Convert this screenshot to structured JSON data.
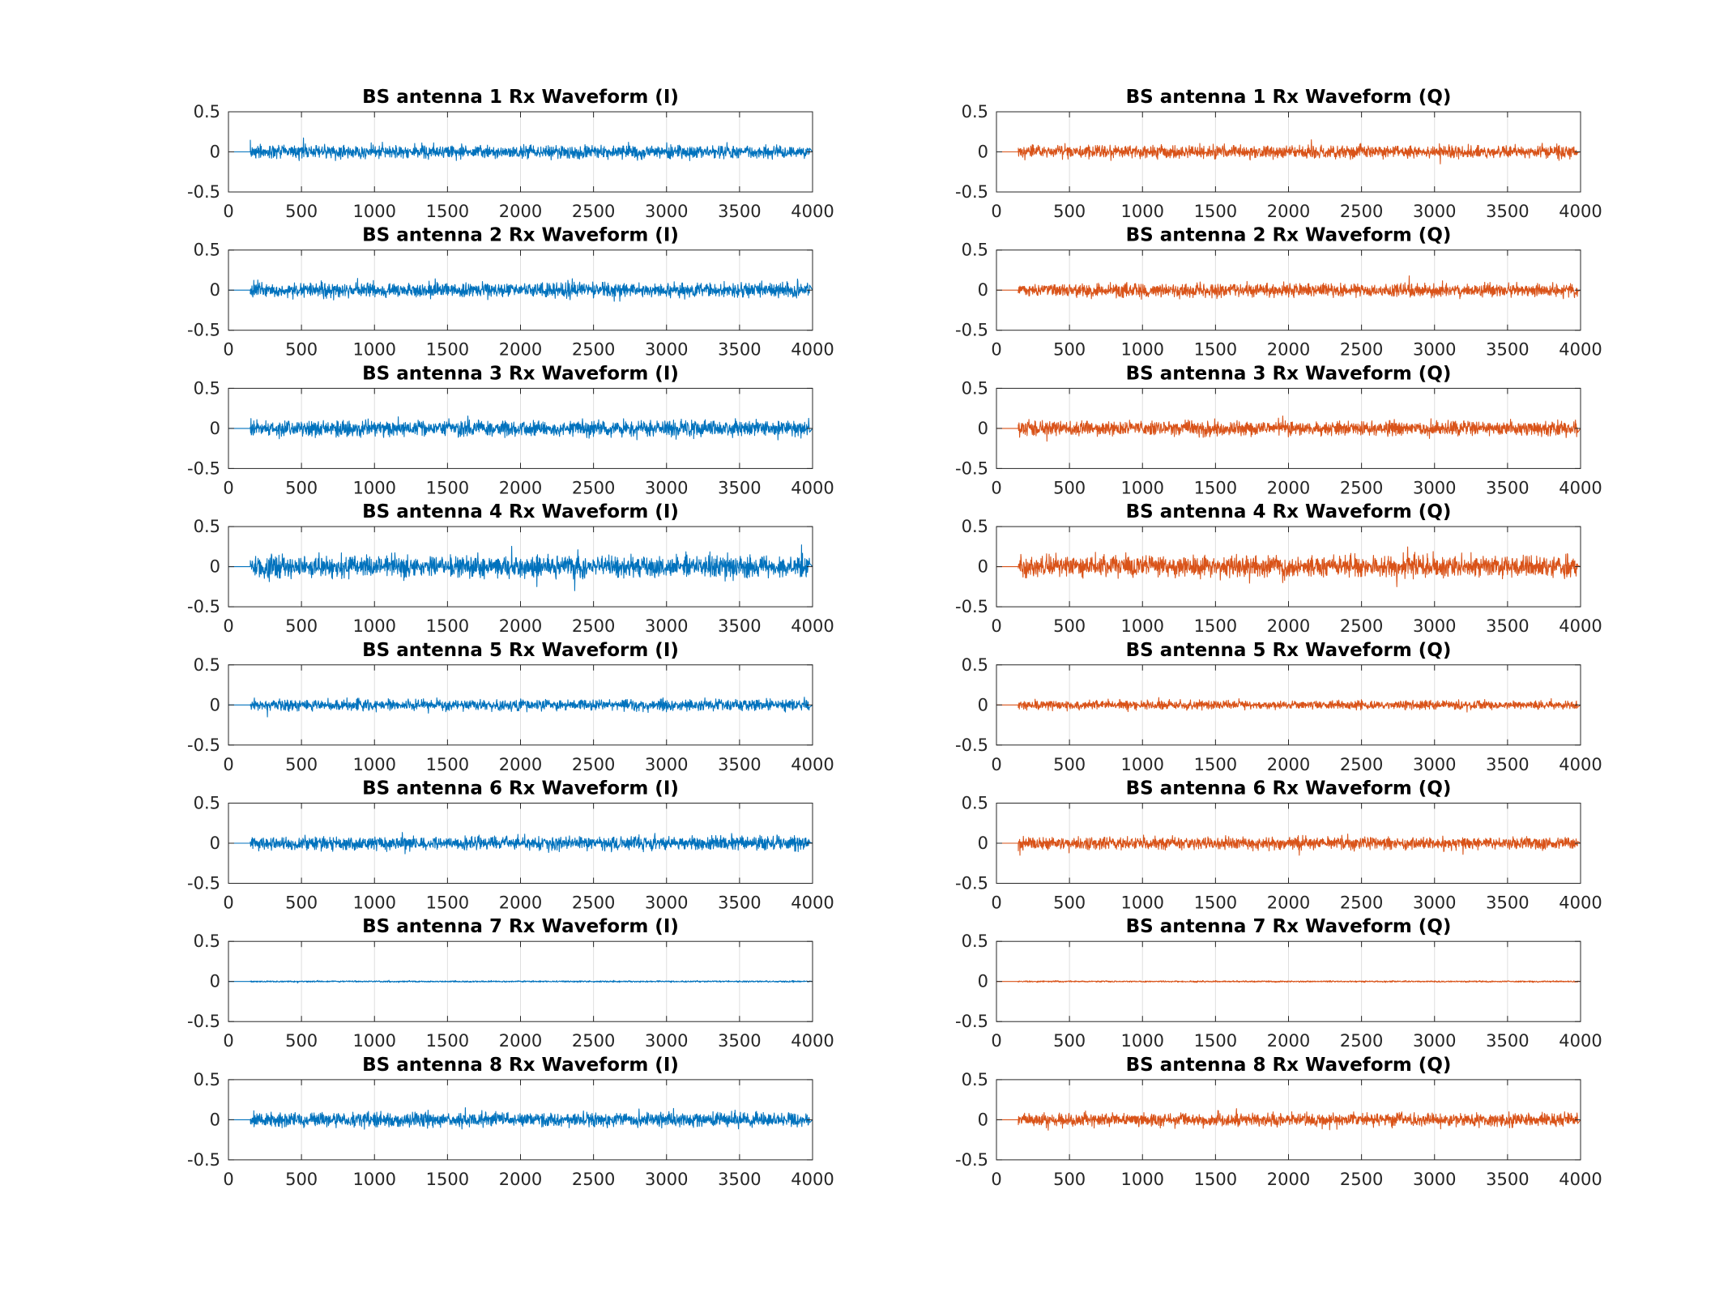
{
  "chart_data": [
    {
      "type": "line",
      "title": "BS antenna 1 Rx Waveform (I)",
      "panel": "I",
      "antenna": 1,
      "color": "#0072BD",
      "xlim": [
        0,
        4000
      ],
      "ylim": [
        -0.5,
        0.5
      ],
      "xticks": [
        "0",
        "500",
        "1000",
        "1500",
        "2000",
        "2500",
        "3000",
        "3500",
        "4000"
      ],
      "yticks": [
        "0.5",
        "0",
        "-0.5"
      ],
      "grid_x": true,
      "grid_y": false,
      "signal_start": 150,
      "signal_end": 3980,
      "amplitude_envelope": 0.18
    },
    {
      "type": "line",
      "title": "BS antenna 1 Rx Waveform (Q)",
      "panel": "Q",
      "antenna": 1,
      "color": "#D95319",
      "xlim": [
        0,
        4000
      ],
      "ylim": [
        -0.5,
        0.5
      ],
      "xticks": [
        "0",
        "500",
        "1000",
        "1500",
        "2000",
        "2500",
        "3000",
        "3500",
        "4000"
      ],
      "yticks": [
        "0.5",
        "0",
        "-0.5"
      ],
      "grid_x": true,
      "grid_y": false,
      "signal_start": 150,
      "signal_end": 3980,
      "amplitude_envelope": 0.18
    },
    {
      "type": "line",
      "title": "BS antenna 2 Rx Waveform (I)",
      "panel": "I",
      "antenna": 2,
      "color": "#0072BD",
      "xlim": [
        0,
        4000
      ],
      "ylim": [
        -0.5,
        0.5
      ],
      "xticks": [
        "0",
        "500",
        "1000",
        "1500",
        "2000",
        "2500",
        "3000",
        "3500",
        "4000"
      ],
      "yticks": [
        "0.5",
        "0",
        "-0.5"
      ],
      "grid_x": true,
      "grid_y": false,
      "signal_start": 150,
      "signal_end": 3980,
      "amplitude_envelope": 0.2
    },
    {
      "type": "line",
      "title": "BS antenna 2 Rx Waveform (Q)",
      "panel": "Q",
      "antenna": 2,
      "color": "#D95319",
      "xlim": [
        0,
        4000
      ],
      "ylim": [
        -0.5,
        0.5
      ],
      "xticks": [
        "0",
        "500",
        "1000",
        "1500",
        "2000",
        "2500",
        "3000",
        "3500",
        "4000"
      ],
      "yticks": [
        "0.5",
        "0",
        "-0.5"
      ],
      "grid_x": true,
      "grid_y": false,
      "signal_start": 150,
      "signal_end": 3980,
      "amplitude_envelope": 0.18
    },
    {
      "type": "line",
      "title": "BS antenna 3 Rx Waveform (I)",
      "panel": "I",
      "antenna": 3,
      "color": "#0072BD",
      "xlim": [
        0,
        4000
      ],
      "ylim": [
        -0.5,
        0.5
      ],
      "xticks": [
        "0",
        "500",
        "1000",
        "1500",
        "2000",
        "2500",
        "3000",
        "3500",
        "4000"
      ],
      "yticks": [
        "0.5",
        "0",
        "-0.5"
      ],
      "grid_x": true,
      "grid_y": false,
      "signal_start": 150,
      "signal_end": 3980,
      "amplitude_envelope": 0.22
    },
    {
      "type": "line",
      "title": "BS antenna 3 Rx Waveform (Q)",
      "panel": "Q",
      "antenna": 3,
      "color": "#D95319",
      "xlim": [
        0,
        4000
      ],
      "ylim": [
        -0.5,
        0.5
      ],
      "xticks": [
        "0",
        "500",
        "1000",
        "1500",
        "2000",
        "2500",
        "3000",
        "3500",
        "4000"
      ],
      "yticks": [
        "0.5",
        "0",
        "-0.5"
      ],
      "grid_x": true,
      "grid_y": false,
      "signal_start": 150,
      "signal_end": 3980,
      "amplitude_envelope": 0.2
    },
    {
      "type": "line",
      "title": "BS antenna 4 Rx Waveform (I)",
      "panel": "I",
      "antenna": 4,
      "color": "#0072BD",
      "xlim": [
        0,
        4000
      ],
      "ylim": [
        -0.5,
        0.5
      ],
      "xticks": [
        "0",
        "500",
        "1000",
        "1500",
        "2000",
        "2500",
        "3000",
        "3500",
        "4000"
      ],
      "yticks": [
        "0.5",
        "0",
        "-0.5"
      ],
      "grid_x": true,
      "grid_y": false,
      "signal_start": 150,
      "signal_end": 3980,
      "amplitude_envelope": 0.3
    },
    {
      "type": "line",
      "title": "BS antenna 4 Rx Waveform (Q)",
      "panel": "Q",
      "antenna": 4,
      "color": "#D95319",
      "xlim": [
        0,
        4000
      ],
      "ylim": [
        -0.5,
        0.5
      ],
      "xticks": [
        "0",
        "500",
        "1000",
        "1500",
        "2000",
        "2500",
        "3000",
        "3500",
        "4000"
      ],
      "yticks": [
        "0.5",
        "0",
        "-0.5"
      ],
      "grid_x": true,
      "grid_y": false,
      "signal_start": 150,
      "signal_end": 3980,
      "amplitude_envelope": 0.28
    },
    {
      "type": "line",
      "title": "BS antenna 5 Rx Waveform (I)",
      "panel": "I",
      "antenna": 5,
      "color": "#0072BD",
      "xlim": [
        0,
        4000
      ],
      "ylim": [
        -0.5,
        0.5
      ],
      "xticks": [
        "0",
        "500",
        "1000",
        "1500",
        "2000",
        "2500",
        "3000",
        "3500",
        "4000"
      ],
      "yticks": [
        "0.5",
        "0",
        "-0.5"
      ],
      "grid_x": true,
      "grid_y": false,
      "signal_start": 150,
      "signal_end": 3980,
      "amplitude_envelope": 0.15
    },
    {
      "type": "line",
      "title": "BS antenna 5 Rx Waveform (Q)",
      "panel": "Q",
      "antenna": 5,
      "color": "#D95319",
      "xlim": [
        0,
        4000
      ],
      "ylim": [
        -0.5,
        0.5
      ],
      "xticks": [
        "0",
        "500",
        "1000",
        "1500",
        "2000",
        "2500",
        "3000",
        "3500",
        "4000"
      ],
      "yticks": [
        "0.5",
        "0",
        "-0.5"
      ],
      "grid_x": true,
      "grid_y": false,
      "signal_start": 150,
      "signal_end": 3980,
      "amplitude_envelope": 0.12
    },
    {
      "type": "line",
      "title": "BS antenna 6 Rx Waveform (I)",
      "panel": "I",
      "antenna": 6,
      "color": "#0072BD",
      "xlim": [
        0,
        4000
      ],
      "ylim": [
        -0.5,
        0.5
      ],
      "xticks": [
        "0",
        "500",
        "1000",
        "1500",
        "2000",
        "2500",
        "3000",
        "3500",
        "4000"
      ],
      "yticks": [
        "0.5",
        "0",
        "-0.5"
      ],
      "grid_x": true,
      "grid_y": false,
      "signal_start": 150,
      "signal_end": 3980,
      "amplitude_envelope": 0.18
    },
    {
      "type": "line",
      "title": "BS antenna 6 Rx Waveform (Q)",
      "panel": "Q",
      "antenna": 6,
      "color": "#D95319",
      "xlim": [
        0,
        4000
      ],
      "ylim": [
        -0.5,
        0.5
      ],
      "xticks": [
        "0",
        "500",
        "1000",
        "1500",
        "2000",
        "2500",
        "3000",
        "3500",
        "4000"
      ],
      "yticks": [
        "0.5",
        "0",
        "-0.5"
      ],
      "grid_x": true,
      "grid_y": false,
      "signal_start": 150,
      "signal_end": 3980,
      "amplitude_envelope": 0.17
    },
    {
      "type": "line",
      "title": "BS antenna 7 Rx Waveform (I)",
      "panel": "I",
      "antenna": 7,
      "color": "#0072BD",
      "xlim": [
        0,
        4000
      ],
      "ylim": [
        -0.5,
        0.5
      ],
      "xticks": [
        "0",
        "500",
        "1000",
        "1500",
        "2000",
        "2500",
        "3000",
        "3500",
        "4000"
      ],
      "yticks": [
        "0.5",
        "0",
        "-0.5"
      ],
      "grid_x": true,
      "grid_y": false,
      "signal_start": 150,
      "signal_end": 3980,
      "amplitude_envelope": 0.02
    },
    {
      "type": "line",
      "title": "BS antenna 7 Rx Waveform (Q)",
      "panel": "Q",
      "antenna": 7,
      "color": "#D95319",
      "xlim": [
        0,
        4000
      ],
      "ylim": [
        -0.5,
        0.5
      ],
      "xticks": [
        "0",
        "500",
        "1000",
        "1500",
        "2000",
        "2500",
        "3000",
        "3500",
        "4000"
      ],
      "yticks": [
        "0.5",
        "0",
        "-0.5"
      ],
      "grid_x": true,
      "grid_y": false,
      "signal_start": 150,
      "signal_end": 3980,
      "amplitude_envelope": 0.02
    },
    {
      "type": "line",
      "title": "BS antenna 8 Rx Waveform (I)",
      "panel": "I",
      "antenna": 8,
      "color": "#0072BD",
      "xlim": [
        0,
        4000
      ],
      "ylim": [
        -0.5,
        0.5
      ],
      "xticks": [
        "0",
        "500",
        "1000",
        "1500",
        "2000",
        "2500",
        "3000",
        "3500",
        "4000"
      ],
      "yticks": [
        "0.5",
        "0",
        "-0.5"
      ],
      "grid_x": true,
      "grid_y": false,
      "signal_start": 150,
      "signal_end": 3980,
      "amplitude_envelope": 0.2
    },
    {
      "type": "line",
      "title": "BS antenna 8 Rx Waveform (Q)",
      "panel": "Q",
      "antenna": 8,
      "color": "#D95319",
      "xlim": [
        0,
        4000
      ],
      "ylim": [
        -0.5,
        0.5
      ],
      "xticks": [
        "0",
        "500",
        "1000",
        "1500",
        "2000",
        "2500",
        "3000",
        "3500",
        "4000"
      ],
      "yticks": [
        "0.5",
        "0",
        "-0.5"
      ],
      "grid_x": true,
      "grid_y": false,
      "signal_start": 150,
      "signal_end": 3980,
      "amplitude_envelope": 0.18
    }
  ]
}
